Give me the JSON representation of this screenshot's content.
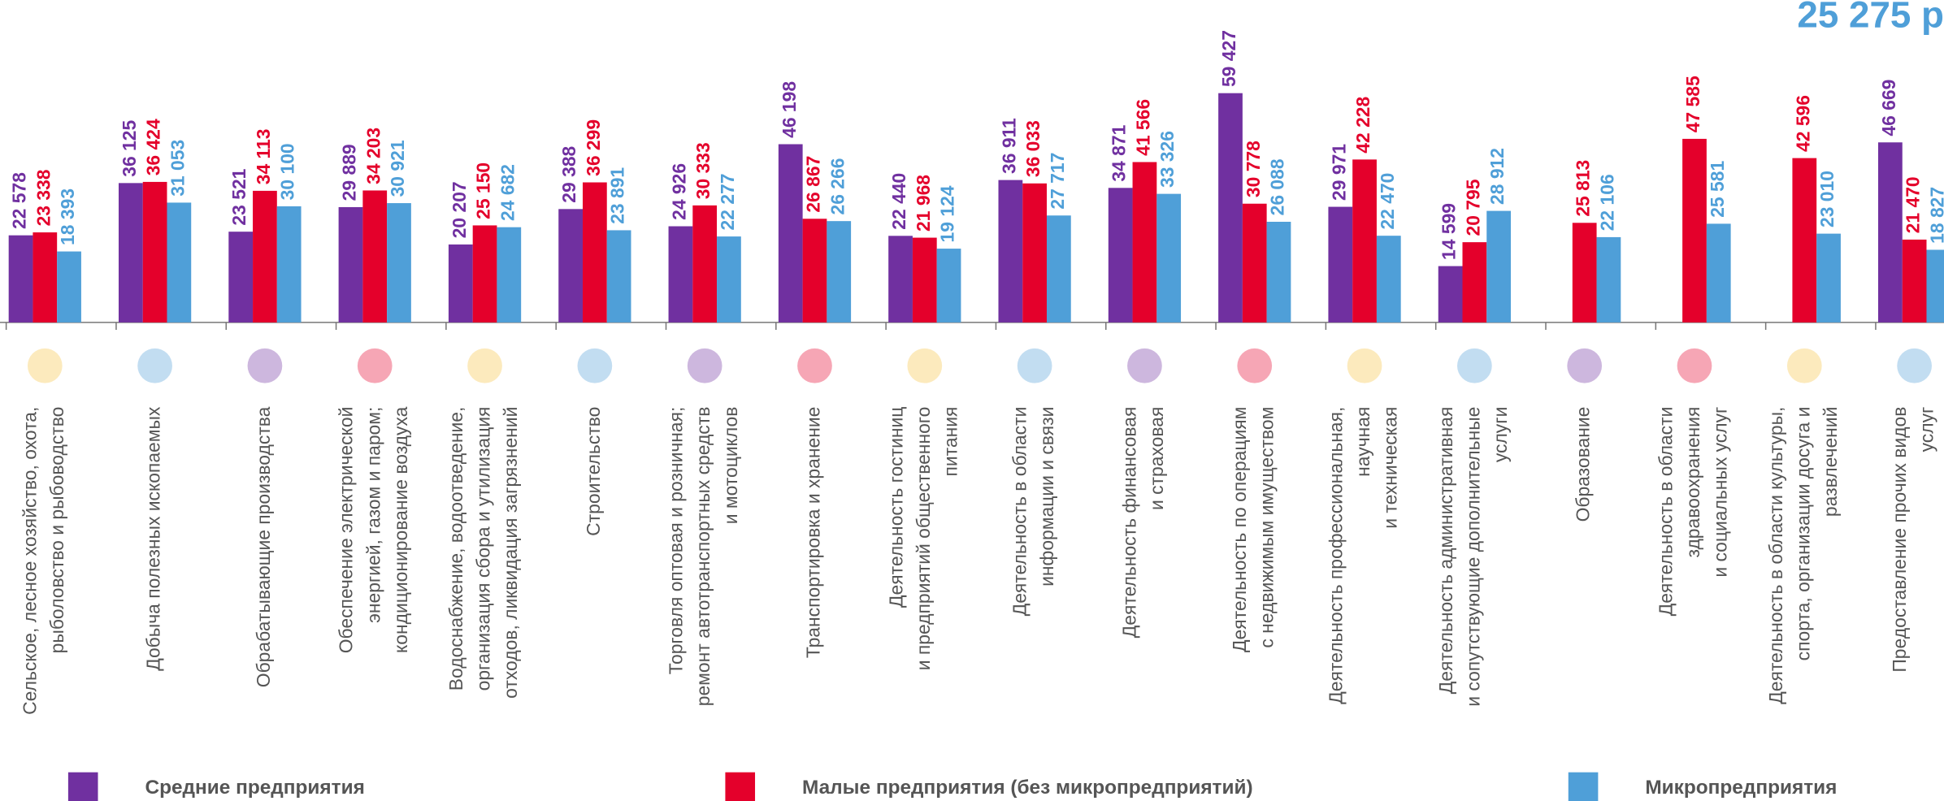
{
  "chart_data": {
    "type": "bar",
    "annotation": "25 275 р",
    "categories": [
      [
        "Сельское, лесное хозяйство, охота,",
        "рыболовство и рыбоводство"
      ],
      [
        "Добыча полезных ископаемых"
      ],
      [
        "Обрабатывающие производства"
      ],
      [
        "Обеспечение электрической",
        "энергией, газом и паром;",
        "кондиционирование воздуха"
      ],
      [
        "Водоснабжение, водоотведение,",
        "организация сбора и утилизация",
        "отходов, ликвидация загрязнений"
      ],
      [
        "Строительство"
      ],
      [
        "Торговля оптовая и розничная;",
        "ремонт автотранспортных средств",
        "и мотоциклов"
      ],
      [
        "Транспортировка и хранение"
      ],
      [
        "Деятельность гостиниц",
        "и предприятий общественного",
        "питания"
      ],
      [
        "Деятельность в области",
        "информации и связи"
      ],
      [
        "Деятельность финансовая",
        "и страховая"
      ],
      [
        "Деятельность по операциям",
        "с недвижимым имуществом"
      ],
      [
        "Деятельность профессиональная,",
        "научная",
        "и техническая"
      ],
      [
        "Деятельность административная",
        "и сопутствующие дополнительные",
        "услуги"
      ],
      [
        "Образование"
      ],
      [
        "Деятельность в области",
        "здравоохранения",
        "и социальных услуг"
      ],
      [
        "Деятельность в области культуры,",
        "спорта, организации досуга и",
        "развлечений"
      ],
      [
        "Предоставление прочих видов",
        "услуг"
      ]
    ],
    "series": [
      {
        "name": "Средние предприятия",
        "color": "#7030a0",
        "values": [
          22578,
          36125,
          23521,
          29889,
          20207,
          29388,
          24926,
          46198,
          22440,
          36911,
          34871,
          59427,
          29971,
          14599,
          null,
          null,
          null,
          46669
        ],
        "value_labels": [
          "22 578",
          "36 125",
          "23 521",
          "29 889",
          "20 207",
          "29 388",
          "24 926",
          "46 198",
          "22 440",
          "36 911",
          "34 871",
          "59 427",
          "29 971",
          "14 599",
          null,
          null,
          null,
          "46 669"
        ]
      },
      {
        "name": "Малые предприятия (без микропредприятий)",
        "color": "#e4002b",
        "values": [
          23338,
          36424,
          34113,
          34203,
          25150,
          36299,
          30333,
          26867,
          21968,
          36033,
          41566,
          30778,
          42228,
          20795,
          25813,
          47585,
          42596,
          21470
        ],
        "value_labels": [
          "23 338",
          "36 424",
          "34 113",
          "34 203",
          "25 150",
          "36 299",
          "30 333",
          "26 867",
          "21 968",
          "36 033",
          "41 566",
          "30 778",
          "42 228",
          "20 795",
          "25 813",
          "47 585",
          "42 596",
          "21 470"
        ]
      },
      {
        "name": "Микропредприятия",
        "color": "#4f9fd8",
        "values": [
          18393,
          31053,
          30100,
          30921,
          24682,
          23891,
          22277,
          26266,
          19124,
          27717,
          33326,
          26088,
          22470,
          28912,
          22106,
          25581,
          23010,
          18827
        ],
        "value_labels": [
          "18 393",
          "31 053",
          "30 100",
          "30 921",
          "24 682",
          "23 891",
          "22 277",
          "26 266",
          "19 124",
          "27 717",
          "33 326",
          "26 088",
          "22 470",
          "28 912",
          "22 106",
          "25 581",
          "23 010",
          "18 827"
        ]
      }
    ]
  }
}
